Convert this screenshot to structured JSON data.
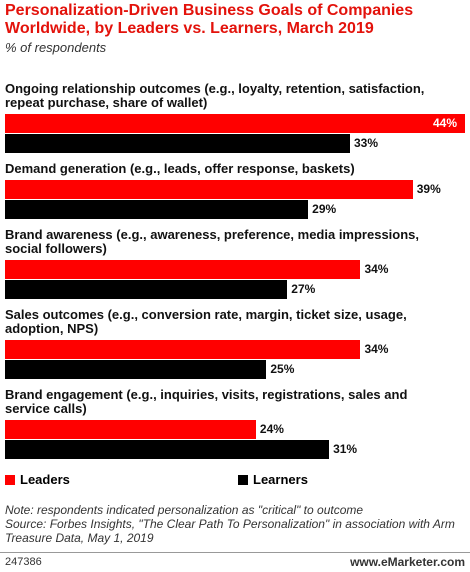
{
  "chart_data": {
    "type": "bar",
    "orientation": "horizontal",
    "title": "Personalization-Driven Business Goals of Companies Worldwide, by Leaders vs. Learners, March 2019",
    "subtitle": "% of respondents",
    "categories": [
      "Ongoing relationship outcomes (e.g., loyalty, retention, satisfaction, repeat purchase, share of wallet)",
      "Demand generation (e.g., leads, offer response, baskets)",
      "Brand awareness (e.g., awareness, preference, media impressions, social followers)",
      "Sales outcomes (e.g., conversion rate, margin, ticket size, usage, adoption, NPS)",
      "Brand engagement (e.g., inquiries, visits, registrations, sales and service calls)"
    ],
    "series": [
      {
        "name": "Leaders",
        "color": "#ff0000",
        "values": [
          44,
          39,
          34,
          34,
          24
        ],
        "value_labels": [
          "44%",
          "39%",
          "34%",
          "34%",
          "24%"
        ]
      },
      {
        "name": "Learners",
        "color": "#000000",
        "values": [
          33,
          29,
          27,
          25,
          31
        ],
        "value_labels": [
          "33%",
          "29%",
          "27%",
          "25%",
          "31%"
        ]
      }
    ],
    "note": "Note: respondents indicated personalization as \"critical\" to outcome",
    "source": "Source: Forbes Insights, \"The Clear Path To Personalization\" in association with Arm Treasure Data, May 1, 2019",
    "chart_id": "247386",
    "brand": "www.eMarketer.com"
  }
}
